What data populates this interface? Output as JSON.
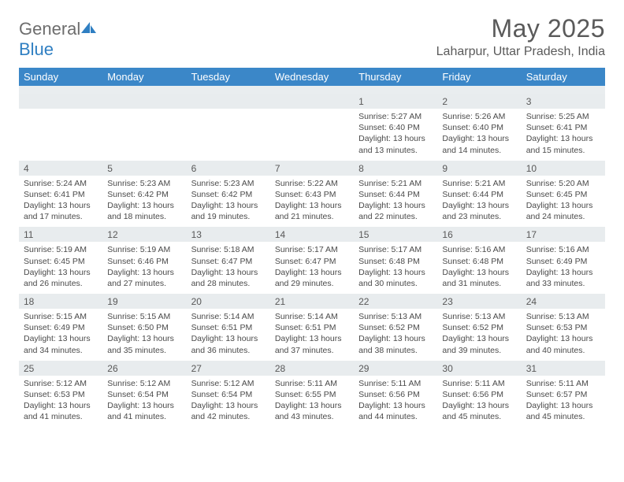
{
  "logo": {
    "word1": "General",
    "word2": "Blue"
  },
  "title": "May 2025",
  "location": "Laharpur, Uttar Pradesh, India",
  "day_headers": [
    "Sunday",
    "Monday",
    "Tuesday",
    "Wednesday",
    "Thursday",
    "Friday",
    "Saturday"
  ],
  "colors": {
    "header_bg": "#3b87c8",
    "header_text": "#ffffff",
    "num_bg": "#e8ecee",
    "text": "#4a4a4a",
    "title": "#5a5a5a",
    "logo_gray": "#6d6d6d",
    "logo_blue": "#2f7fc2"
  },
  "weeks": [
    [
      {
        "n": "",
        "l": []
      },
      {
        "n": "",
        "l": []
      },
      {
        "n": "",
        "l": []
      },
      {
        "n": "",
        "l": []
      },
      {
        "n": "1",
        "l": [
          "Sunrise: 5:27 AM",
          "Sunset: 6:40 PM",
          "Daylight: 13 hours",
          "and 13 minutes."
        ]
      },
      {
        "n": "2",
        "l": [
          "Sunrise: 5:26 AM",
          "Sunset: 6:40 PM",
          "Daylight: 13 hours",
          "and 14 minutes."
        ]
      },
      {
        "n": "3",
        "l": [
          "Sunrise: 5:25 AM",
          "Sunset: 6:41 PM",
          "Daylight: 13 hours",
          "and 15 minutes."
        ]
      }
    ],
    [
      {
        "n": "4",
        "l": [
          "Sunrise: 5:24 AM",
          "Sunset: 6:41 PM",
          "Daylight: 13 hours",
          "and 17 minutes."
        ]
      },
      {
        "n": "5",
        "l": [
          "Sunrise: 5:23 AM",
          "Sunset: 6:42 PM",
          "Daylight: 13 hours",
          "and 18 minutes."
        ]
      },
      {
        "n": "6",
        "l": [
          "Sunrise: 5:23 AM",
          "Sunset: 6:42 PM",
          "Daylight: 13 hours",
          "and 19 minutes."
        ]
      },
      {
        "n": "7",
        "l": [
          "Sunrise: 5:22 AM",
          "Sunset: 6:43 PM",
          "Daylight: 13 hours",
          "and 21 minutes."
        ]
      },
      {
        "n": "8",
        "l": [
          "Sunrise: 5:21 AM",
          "Sunset: 6:44 PM",
          "Daylight: 13 hours",
          "and 22 minutes."
        ]
      },
      {
        "n": "9",
        "l": [
          "Sunrise: 5:21 AM",
          "Sunset: 6:44 PM",
          "Daylight: 13 hours",
          "and 23 minutes."
        ]
      },
      {
        "n": "10",
        "l": [
          "Sunrise: 5:20 AM",
          "Sunset: 6:45 PM",
          "Daylight: 13 hours",
          "and 24 minutes."
        ]
      }
    ],
    [
      {
        "n": "11",
        "l": [
          "Sunrise: 5:19 AM",
          "Sunset: 6:45 PM",
          "Daylight: 13 hours",
          "and 26 minutes."
        ]
      },
      {
        "n": "12",
        "l": [
          "Sunrise: 5:19 AM",
          "Sunset: 6:46 PM",
          "Daylight: 13 hours",
          "and 27 minutes."
        ]
      },
      {
        "n": "13",
        "l": [
          "Sunrise: 5:18 AM",
          "Sunset: 6:47 PM",
          "Daylight: 13 hours",
          "and 28 minutes."
        ]
      },
      {
        "n": "14",
        "l": [
          "Sunrise: 5:17 AM",
          "Sunset: 6:47 PM",
          "Daylight: 13 hours",
          "and 29 minutes."
        ]
      },
      {
        "n": "15",
        "l": [
          "Sunrise: 5:17 AM",
          "Sunset: 6:48 PM",
          "Daylight: 13 hours",
          "and 30 minutes."
        ]
      },
      {
        "n": "16",
        "l": [
          "Sunrise: 5:16 AM",
          "Sunset: 6:48 PM",
          "Daylight: 13 hours",
          "and 31 minutes."
        ]
      },
      {
        "n": "17",
        "l": [
          "Sunrise: 5:16 AM",
          "Sunset: 6:49 PM",
          "Daylight: 13 hours",
          "and 33 minutes."
        ]
      }
    ],
    [
      {
        "n": "18",
        "l": [
          "Sunrise: 5:15 AM",
          "Sunset: 6:49 PM",
          "Daylight: 13 hours",
          "and 34 minutes."
        ]
      },
      {
        "n": "19",
        "l": [
          "Sunrise: 5:15 AM",
          "Sunset: 6:50 PM",
          "Daylight: 13 hours",
          "and 35 minutes."
        ]
      },
      {
        "n": "20",
        "l": [
          "Sunrise: 5:14 AM",
          "Sunset: 6:51 PM",
          "Daylight: 13 hours",
          "and 36 minutes."
        ]
      },
      {
        "n": "21",
        "l": [
          "Sunrise: 5:14 AM",
          "Sunset: 6:51 PM",
          "Daylight: 13 hours",
          "and 37 minutes."
        ]
      },
      {
        "n": "22",
        "l": [
          "Sunrise: 5:13 AM",
          "Sunset: 6:52 PM",
          "Daylight: 13 hours",
          "and 38 minutes."
        ]
      },
      {
        "n": "23",
        "l": [
          "Sunrise: 5:13 AM",
          "Sunset: 6:52 PM",
          "Daylight: 13 hours",
          "and 39 minutes."
        ]
      },
      {
        "n": "24",
        "l": [
          "Sunrise: 5:13 AM",
          "Sunset: 6:53 PM",
          "Daylight: 13 hours",
          "and 40 minutes."
        ]
      }
    ],
    [
      {
        "n": "25",
        "l": [
          "Sunrise: 5:12 AM",
          "Sunset: 6:53 PM",
          "Daylight: 13 hours",
          "and 41 minutes."
        ]
      },
      {
        "n": "26",
        "l": [
          "Sunrise: 5:12 AM",
          "Sunset: 6:54 PM",
          "Daylight: 13 hours",
          "and 41 minutes."
        ]
      },
      {
        "n": "27",
        "l": [
          "Sunrise: 5:12 AM",
          "Sunset: 6:54 PM",
          "Daylight: 13 hours",
          "and 42 minutes."
        ]
      },
      {
        "n": "28",
        "l": [
          "Sunrise: 5:11 AM",
          "Sunset: 6:55 PM",
          "Daylight: 13 hours",
          "and 43 minutes."
        ]
      },
      {
        "n": "29",
        "l": [
          "Sunrise: 5:11 AM",
          "Sunset: 6:56 PM",
          "Daylight: 13 hours",
          "and 44 minutes."
        ]
      },
      {
        "n": "30",
        "l": [
          "Sunrise: 5:11 AM",
          "Sunset: 6:56 PM",
          "Daylight: 13 hours",
          "and 45 minutes."
        ]
      },
      {
        "n": "31",
        "l": [
          "Sunrise: 5:11 AM",
          "Sunset: 6:57 PM",
          "Daylight: 13 hours",
          "and 45 minutes."
        ]
      }
    ]
  ]
}
